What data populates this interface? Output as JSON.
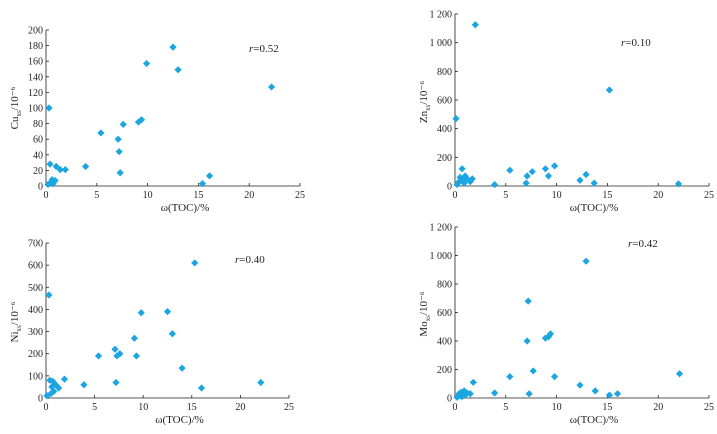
{
  "chart_data": [
    {
      "type": "scatter",
      "panel": "Cu",
      "xlabel": "ω(TOC)/%",
      "ylabel_main": "Cu",
      "ylabel_sub": "xs",
      "ylabel_unit": "/10⁻⁶",
      "annotation_var": "r",
      "annotation_value": "=0.52",
      "xlim": [
        0,
        25
      ],
      "ylim": [
        0,
        200
      ],
      "xticks": [
        0,
        5,
        10,
        15,
        20,
        25
      ],
      "yticks": [
        0,
        20,
        40,
        60,
        80,
        100,
        120,
        140,
        160,
        180,
        200
      ],
      "ytick_labels": [
        "0",
        "20",
        "40",
        "60",
        "80",
        "100",
        "120",
        "140",
        "160",
        "180",
        "200"
      ],
      "marker_color": "#1ba6e2",
      "points": [
        [
          0.2,
          2
        ],
        [
          0.3,
          100
        ],
        [
          0.4,
          28
        ],
        [
          0.5,
          5
        ],
        [
          0.6,
          8
        ],
        [
          0.7,
          3
        ],
        [
          0.9,
          7
        ],
        [
          1.0,
          25
        ],
        [
          1.4,
          21
        ],
        [
          1.9,
          21
        ],
        [
          3.9,
          25
        ],
        [
          5.4,
          68
        ],
        [
          7.1,
          60
        ],
        [
          7.2,
          44
        ],
        [
          7.3,
          17
        ],
        [
          7.6,
          79
        ],
        [
          9.1,
          82
        ],
        [
          9.4,
          85
        ],
        [
          9.9,
          157
        ],
        [
          12.5,
          178
        ],
        [
          13.0,
          149
        ],
        [
          15.4,
          3
        ],
        [
          16.1,
          13
        ],
        [
          22.2,
          127
        ]
      ]
    },
    {
      "type": "scatter",
      "panel": "Zn",
      "xlabel": "ω(TOC)/%",
      "ylabel_main": "Zn",
      "ylabel_sub": "xs",
      "ylabel_unit": "/10⁻⁶",
      "annotation_var": "r",
      "annotation_value": "=0.10",
      "xlim": [
        0,
        25
      ],
      "ylim": [
        0,
        1200
      ],
      "xticks": [
        0,
        5,
        10,
        15,
        20,
        25
      ],
      "yticks": [
        0,
        200,
        400,
        600,
        800,
        1000,
        1200
      ],
      "ytick_labels": [
        "0",
        "200",
        "400",
        "600",
        "800",
        "1 000",
        "1 200"
      ],
      "marker_color": "#1ba6e2",
      "points": [
        [
          0.1,
          470
        ],
        [
          0.2,
          10
        ],
        [
          0.4,
          30
        ],
        [
          0.5,
          60
        ],
        [
          0.7,
          120
        ],
        [
          0.8,
          40
        ],
        [
          0.9,
          20
        ],
        [
          1.0,
          70
        ],
        [
          1.2,
          50
        ],
        [
          1.5,
          30
        ],
        [
          1.7,
          50
        ],
        [
          2.0,
          1125
        ],
        [
          3.9,
          10
        ],
        [
          5.4,
          110
        ],
        [
          7.0,
          20
        ],
        [
          7.1,
          70
        ],
        [
          7.6,
          100
        ],
        [
          8.9,
          120
        ],
        [
          9.2,
          70
        ],
        [
          9.8,
          140
        ],
        [
          12.3,
          40
        ],
        [
          12.9,
          80
        ],
        [
          13.7,
          20
        ],
        [
          15.2,
          670
        ],
        [
          22.0,
          15
        ]
      ]
    },
    {
      "type": "scatter",
      "panel": "Ni",
      "xlabel": "ω(TOC)/%",
      "ylabel_main": "Ni",
      "ylabel_sub": "xs",
      "ylabel_unit": "/10⁻⁶",
      "annotation_var": "r",
      "annotation_value": "=0.40",
      "xlim": [
        0,
        25
      ],
      "ylim": [
        0,
        700
      ],
      "xticks": [
        0,
        5,
        10,
        15,
        20,
        25
      ],
      "yticks": [
        0,
        100,
        200,
        300,
        400,
        500,
        600,
        700
      ],
      "ytick_labels": [
        "0",
        "100",
        "200",
        "300",
        "400",
        "500",
        "600",
        "700"
      ],
      "marker_color": "#1ba6e2",
      "points": [
        [
          0.1,
          10
        ],
        [
          0.3,
          465
        ],
        [
          0.4,
          80
        ],
        [
          0.5,
          20
        ],
        [
          0.6,
          50
        ],
        [
          0.7,
          75
        ],
        [
          0.8,
          30
        ],
        [
          1.0,
          60
        ],
        [
          1.3,
          45
        ],
        [
          1.9,
          85
        ],
        [
          3.9,
          60
        ],
        [
          5.4,
          190
        ],
        [
          7.1,
          220
        ],
        [
          7.2,
          70
        ],
        [
          7.3,
          190
        ],
        [
          7.6,
          200
        ],
        [
          9.1,
          270
        ],
        [
          9.3,
          190
        ],
        [
          9.8,
          385
        ],
        [
          12.5,
          390
        ],
        [
          13.0,
          290
        ],
        [
          14.0,
          135
        ],
        [
          15.3,
          610
        ],
        [
          16.0,
          45
        ],
        [
          22.1,
          70
        ]
      ]
    },
    {
      "type": "scatter",
      "panel": "Mo",
      "xlabel": "ω(TOC)/%",
      "ylabel_main": "Mo",
      "ylabel_sub": "xs",
      "ylabel_unit": "/10⁻⁶",
      "annotation_var": "r",
      "annotation_value": "=0.42",
      "xlim": [
        0,
        25
      ],
      "ylim": [
        0,
        1200
      ],
      "xticks": [
        0,
        5,
        10,
        15,
        20,
        25
      ],
      "yticks": [
        0,
        200,
        400,
        600,
        800,
        1000,
        1200
      ],
      "ytick_labels": [
        "0",
        "200",
        "400",
        "600",
        "800",
        "1 000",
        "1 200"
      ],
      "marker_color": "#1ba6e2",
      "points": [
        [
          0.2,
          5
        ],
        [
          0.4,
          30
        ],
        [
          0.5,
          15
        ],
        [
          0.6,
          40
        ],
        [
          0.7,
          10
        ],
        [
          0.9,
          50
        ],
        [
          1.0,
          20
        ],
        [
          1.2,
          35
        ],
        [
          1.5,
          30
        ],
        [
          1.8,
          110
        ],
        [
          3.9,
          35
        ],
        [
          5.4,
          150
        ],
        [
          7.1,
          400
        ],
        [
          7.2,
          680
        ],
        [
          7.3,
          30
        ],
        [
          7.7,
          190
        ],
        [
          8.9,
          420
        ],
        [
          9.2,
          430
        ],
        [
          9.4,
          450
        ],
        [
          9.8,
          150
        ],
        [
          12.3,
          90
        ],
        [
          12.9,
          960
        ],
        [
          13.8,
          50
        ],
        [
          15.2,
          20
        ],
        [
          16.0,
          30
        ],
        [
          22.1,
          170
        ]
      ]
    }
  ]
}
